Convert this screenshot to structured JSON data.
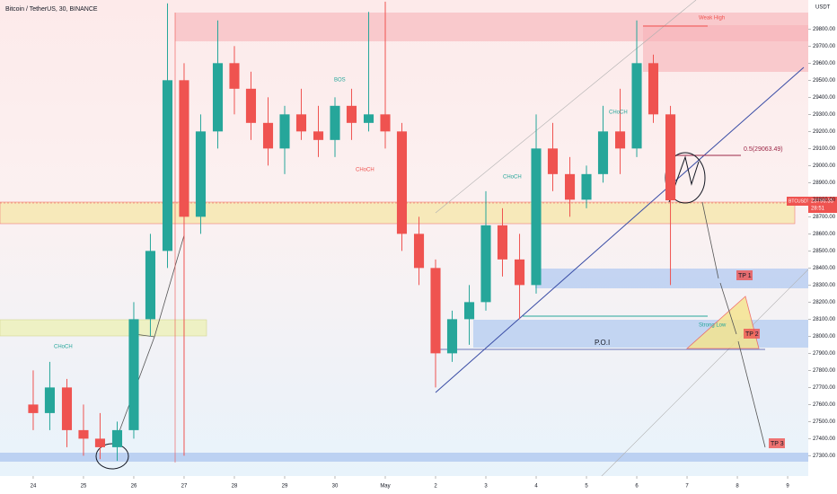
{
  "chart_data": {
    "type": "candlestick",
    "title": "Bitcoin / TetherUS, 30, BINANCE",
    "y_axis_label": "USDT",
    "x": [
      0,
      0.33,
      0.67,
      1,
      1.33,
      1.67,
      2,
      2.33,
      2.67,
      3,
      3.33,
      3.67,
      4,
      4.33,
      4.67,
      5,
      5.33,
      5.67,
      6,
      6.33,
      6.67,
      7,
      7.33,
      7.67,
      8,
      8.33,
      8.67,
      9,
      9.33,
      9.67,
      10,
      10.33,
      10.67,
      11,
      11.33,
      11.67,
      12,
      12.33,
      12.67
    ],
    "open": [
      27600,
      27550,
      27700,
      27450,
      27400,
      27350,
      27450,
      28100,
      28500,
      29500,
      28700,
      29200,
      29600,
      29450,
      29250,
      29100,
      29300,
      29200,
      29150,
      29350,
      29250,
      29300,
      29200,
      28600,
      28400,
      27900,
      28100,
      28200,
      28650,
      28450,
      28300,
      29100,
      28950,
      28800,
      28950,
      29200,
      29100,
      29600,
      29300
    ],
    "high": [
      27800,
      27850,
      27750,
      27600,
      27550,
      27500,
      28200,
      28600,
      29950,
      29600,
      29300,
      29850,
      29700,
      29550,
      29400,
      29350,
      29450,
      29350,
      29400,
      29450,
      29900,
      29960,
      29250,
      28700,
      28450,
      28150,
      28300,
      28850,
      28750,
      28600,
      29300,
      29250,
      29050,
      29000,
      29350,
      29450,
      29850,
      29650,
      29350
    ],
    "low": [
      27450,
      27450,
      27350,
      27300,
      27280,
      27270,
      27400,
      28000,
      28400,
      27300,
      28600,
      29100,
      29300,
      29150,
      29000,
      28950,
      29150,
      29050,
      29050,
      29150,
      29200,
      29100,
      28500,
      28300,
      27700,
      27850,
      27950,
      28150,
      28350,
      28100,
      28250,
      28850,
      28700,
      28750,
      28900,
      28950,
      29050,
      29250,
      28300
    ],
    "close": [
      27550,
      27700,
      27450,
      27400,
      27350,
      27450,
      28100,
      28500,
      29500,
      28700,
      29200,
      29600,
      29450,
      29250,
      29100,
      29300,
      29200,
      29150,
      29350,
      29250,
      29300,
      29200,
      28600,
      28400,
      27900,
      28100,
      28200,
      28650,
      28450,
      28300,
      29100,
      28950,
      28800,
      28950,
      29200,
      29100,
      29600,
      29300,
      28796.35
    ],
    "up_color": "#26a69a",
    "down_color": "#ef5350",
    "xlim": [
      -0.66,
      15.41
    ],
    "xticks": [
      {
        "value": 0,
        "label": "24"
      },
      {
        "value": 1,
        "label": "25"
      },
      {
        "value": 2,
        "label": "26"
      },
      {
        "value": 3,
        "label": "27"
      },
      {
        "value": 4,
        "label": "28"
      },
      {
        "value": 5,
        "label": "29"
      },
      {
        "value": 6,
        "label": "30"
      },
      {
        "value": 7,
        "label": "May"
      },
      {
        "value": 8,
        "label": "2"
      },
      {
        "value": 9,
        "label": "3"
      },
      {
        "value": 10,
        "label": "4"
      },
      {
        "value": 11,
        "label": "5"
      },
      {
        "value": 12,
        "label": "6"
      },
      {
        "value": 13,
        "label": "7"
      },
      {
        "value": 14,
        "label": "8"
      },
      {
        "value": 15,
        "label": "9"
      }
    ],
    "ylim": [
      27260,
      29970
    ],
    "yticks": [
      {
        "value": 27300,
        "label": "27300.00"
      },
      {
        "value": 27400,
        "label": "27400.00"
      },
      {
        "value": 27500,
        "label": "27500.00"
      },
      {
        "value": 27600,
        "label": "27600.00"
      },
      {
        "value": 27700,
        "label": "27700.00"
      },
      {
        "value": 27800,
        "label": "27800.00"
      },
      {
        "value": 27900,
        "label": "27900.00"
      },
      {
        "value": 28000,
        "label": "28000.00"
      },
      {
        "value": 28100,
        "label": "28100.00"
      },
      {
        "value": 28200,
        "label": "28200.00"
      },
      {
        "value": 28300,
        "label": "28300.00"
      },
      {
        "value": 28400,
        "label": "28400.00"
      },
      {
        "value": 28500,
        "label": "28500.00"
      },
      {
        "value": 28600,
        "label": "28600.00"
      },
      {
        "value": 28700,
        "label": "28700.00"
      },
      {
        "value": 28800,
        "label": "28800.00"
      },
      {
        "value": 28900,
        "label": "28900.00"
      },
      {
        "value": 29000,
        "label": "29000.00"
      },
      {
        "value": 29100,
        "label": "29100.00"
      },
      {
        "value": 29200,
        "label": "29200.00"
      },
      {
        "value": 29300,
        "label": "29300.00"
      },
      {
        "value": 29400,
        "label": "29400.00"
      },
      {
        "value": 29500,
        "label": "29500.00"
      },
      {
        "value": 29600,
        "label": "29600.00"
      },
      {
        "value": 29700,
        "label": "29700.00"
      },
      {
        "value": 29800,
        "label": "29800.00"
      }
    ],
    "last_price": {
      "symbol": "BTCUSDT",
      "value": 28796.35,
      "label": "28796.35",
      "countdown": "28:51"
    },
    "annotations": {
      "choch": "CHoCH",
      "bos": "BOS",
      "weak_high": "Weak High",
      "strong_low": "Strong Low",
      "poi": "P.O.I",
      "fib": "0.5(29063.49)",
      "tp1": "TP 1",
      "tp2": "TP 2",
      "tp3": "TP 3"
    }
  }
}
